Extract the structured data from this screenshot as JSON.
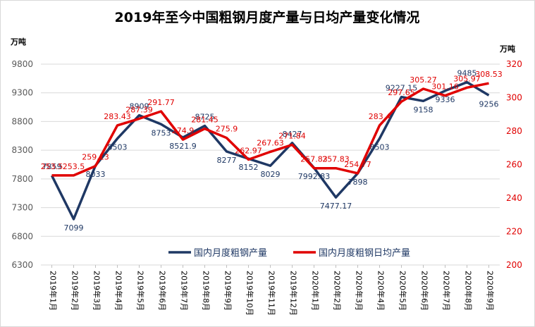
{
  "chart_data": {
    "type": "line",
    "title": "2019年至今中国粗钢月度产量与日均产量变化情况",
    "y_left_unit": "万吨",
    "y_right_unit": "万吨",
    "categories": [
      "2019年1月",
      "2019年2月",
      "2019年3月",
      "2019年4月",
      "2019年5月",
      "2019年6月",
      "2019年7月",
      "2019年8月",
      "2019年9月",
      "2019年10月",
      "2019年11月",
      "2019年12月",
      "2020年1月",
      "2020年2月",
      "2020年3月",
      "2020年4月",
      "2020年5月",
      "2020年6月",
      "2020年7月",
      "2020年8月",
      "2020年9月"
    ],
    "y_left_ticks": [
      6300,
      6800,
      7300,
      7800,
      8300,
      8800,
      9300,
      9800
    ],
    "y_left_lim": [
      6300,
      9800
    ],
    "y_right_ticks": [
      200,
      220,
      240,
      260,
      280,
      300,
      320
    ],
    "y_right_lim": [
      200,
      320
    ],
    "grid": true,
    "legend_position": "bottom-right",
    "series": [
      {
        "name": "国内月度粗钢产量",
        "axis": "left",
        "color": "#1f3864",
        "values": [
          7859,
          7099,
          8033,
          8503,
          8909,
          8753,
          8521.9,
          8725,
          8277,
          8152,
          8029,
          8427,
          7992.83,
          7477.17,
          7898,
          8503,
          9227.15,
          9158,
          9336,
          9485,
          9256
        ],
        "labels": [
          "7859",
          "7099",
          "8033",
          "8503",
          "8909",
          "8753",
          "8521.9",
          "8725",
          "8277",
          "8152",
          "8029",
          "8427",
          "7992.83",
          "7477.17",
          "7898",
          "8503",
          "9227.15",
          "9158",
          "9336",
          "9485",
          "9256"
        ]
      },
      {
        "name": "国内月度粗钢日均产量",
        "axis": "right",
        "color": "#e00000",
        "values": [
          253.5,
          253.5,
          259.13,
          283.43,
          287.39,
          291.77,
          274.9,
          281.45,
          275.9,
          262.97,
          267.63,
          271.84,
          257.83,
          257.83,
          254.77,
          283.4,
          297.65,
          305.27,
          301.16,
          305.97,
          308.53
        ],
        "labels": [
          "253.5",
          "253.5",
          "259.13",
          "283.43",
          "287.39",
          "291.77",
          "274.9",
          "281.45",
          "275.9",
          "262.97",
          "267.63",
          "271.84",
          "257.83",
          "257.83",
          "254.77",
          "283.4",
          "297.65",
          "305.27",
          "301.16",
          "305.97",
          "308.53"
        ]
      }
    ]
  }
}
